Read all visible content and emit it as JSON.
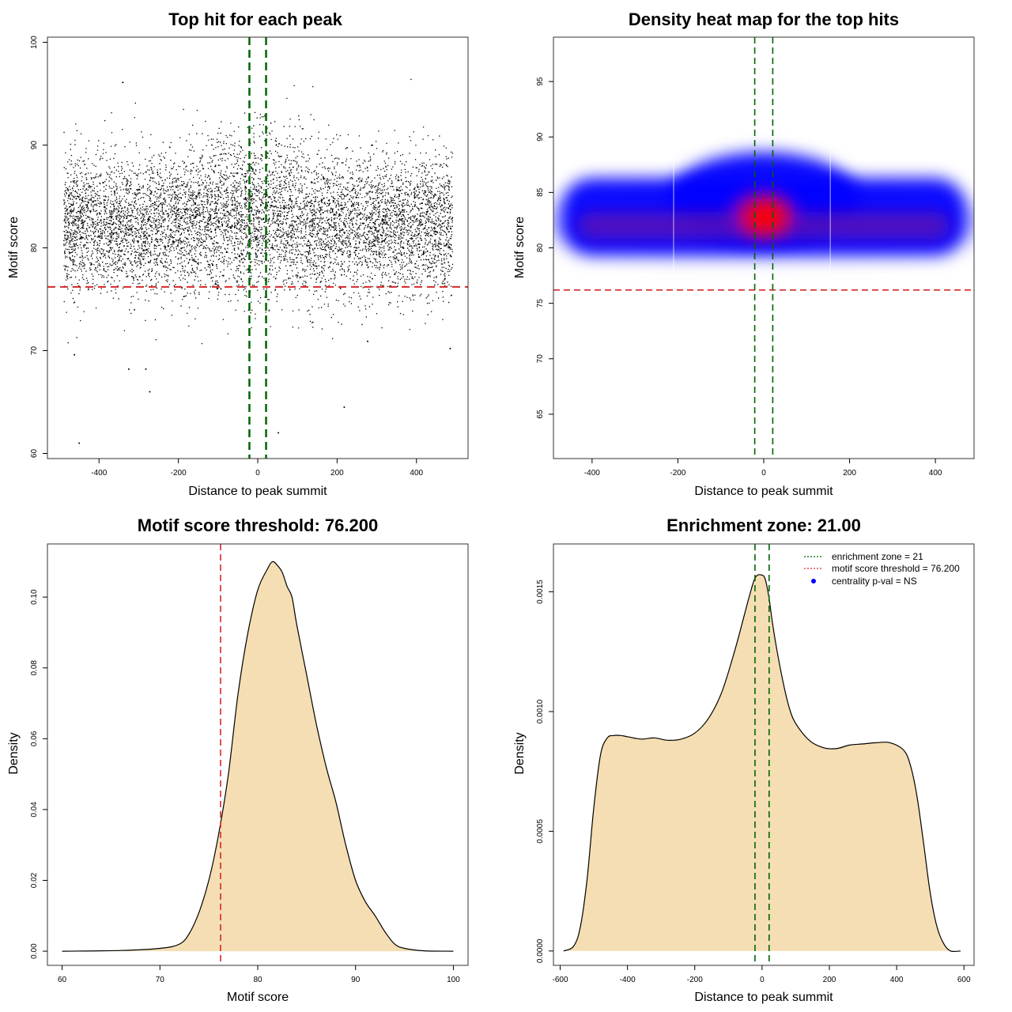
{
  "colors": {
    "threshold_line": "#d62728",
    "zone_line": "#006400",
    "density_fill": "#f5deb3",
    "heat_low": "#0000ff",
    "heat_high": "#ff0000",
    "points": "#000000",
    "legend_dot": "#0000ff"
  },
  "chart_data": [
    {
      "type": "scatter",
      "title": "Top hit for each peak",
      "xlabel": "Distance to peak summit",
      "ylabel": "Motif score",
      "xlim": [
        -530,
        530
      ],
      "ylim": [
        59.5,
        100.5
      ],
      "xticks": [
        -400,
        -200,
        0,
        200,
        400
      ],
      "yticks": [
        60,
        70,
        80,
        90,
        100
      ],
      "x_range_of_points": [
        -490,
        490
      ],
      "y_core_mean": 83,
      "n_points_approx": 20000,
      "threshold_hline": 76.2,
      "zone_vlines": [
        -21,
        21
      ],
      "outliers": [
        {
          "x": -450,
          "y": 61.0
        },
        {
          "x": -325,
          "y": 68.2
        },
        {
          "x": -282,
          "y": 68.2
        },
        {
          "x": -272,
          "y": 66.0
        },
        {
          "x": -462,
          "y": 69.6
        },
        {
          "x": 52,
          "y": 62.0
        },
        {
          "x": 218,
          "y": 64.5
        },
        {
          "x": 277,
          "y": 70.9
        },
        {
          "x": 485,
          "y": 70.2
        },
        {
          "x": -340,
          "y": 96.1
        }
      ]
    },
    {
      "type": "heatmap",
      "title": "Density heat map for the top hits",
      "xlabel": "Distance to peak summit",
      "ylabel": "Motif score",
      "xlim": [
        -490,
        490
      ],
      "ylim": [
        61,
        99
      ],
      "xticks": [
        -400,
        -200,
        0,
        200,
        400
      ],
      "yticks": [
        65,
        70,
        75,
        80,
        85,
        90,
        95
      ],
      "threshold_hline": 76.2,
      "zone_vlines": [
        -21,
        21
      ],
      "density_center": {
        "x": 0,
        "y": 83
      }
    },
    {
      "type": "area",
      "title": "Motif score threshold: 76.200",
      "xlabel": "Motif score",
      "ylabel": "Density",
      "xlim": [
        58.5,
        101.5
      ],
      "ylim": [
        -0.004,
        0.115
      ],
      "xticks": [
        60,
        70,
        80,
        90,
        100
      ],
      "yticks": [
        0.0,
        0.02,
        0.04,
        0.06,
        0.08,
        0.1
      ],
      "ytick_labels": [
        "0.00",
        "0.02",
        "0.04",
        "0.06",
        "0.08",
        "0.10"
      ],
      "threshold_vline": 76.2,
      "x": [
        60,
        66,
        70,
        72,
        73,
        74,
        75,
        76,
        77,
        78,
        79,
        80,
        81,
        81.5,
        82,
        82.5,
        83,
        83.5,
        84,
        85,
        86,
        87,
        88,
        89,
        90,
        91,
        92,
        93,
        94,
        95,
        97,
        100
      ],
      "y": [
        0.0,
        0.0002,
        0.0008,
        0.002,
        0.005,
        0.011,
        0.02,
        0.033,
        0.05,
        0.073,
        0.09,
        0.102,
        0.108,
        0.11,
        0.109,
        0.107,
        0.103,
        0.1,
        0.092,
        0.078,
        0.064,
        0.052,
        0.042,
        0.03,
        0.02,
        0.014,
        0.01,
        0.0055,
        0.002,
        0.0008,
        0.0001,
        0.0
      ]
    },
    {
      "type": "area",
      "title": "Enrichment zone: 21.00",
      "xlabel": "Distance to peak summit",
      "ylabel": "Density",
      "xlim": [
        -620,
        630
      ],
      "ylim": [
        -6e-05,
        0.0017
      ],
      "xticks": [
        -600,
        -400,
        -200,
        0,
        200,
        400,
        600
      ],
      "yticks": [
        0.0,
        0.0005,
        0.001,
        0.0015
      ],
      "ytick_labels": [
        "0.0000",
        "0.0005",
        "0.0010",
        "0.0015"
      ],
      "zone_vlines": [
        -21,
        21
      ],
      "x": [
        -590,
        -560,
        -540,
        -520,
        -500,
        -480,
        -460,
        -440,
        -420,
        -400,
        -360,
        -320,
        -280,
        -240,
        -200,
        -160,
        -120,
        -80,
        -40,
        -20,
        0,
        10,
        20,
        30,
        40,
        60,
        80,
        100,
        140,
        180,
        220,
        260,
        300,
        340,
        380,
        420,
        440,
        460,
        480,
        500,
        520,
        540,
        560,
        590
      ],
      "y": [
        0.0,
        2e-05,
        0.0001,
        0.0003,
        0.0006,
        0.00082,
        0.00089,
        0.0009,
        0.0009,
        0.000895,
        0.000885,
        0.00089,
        0.00088,
        0.000885,
        0.00091,
        0.00097,
        0.00108,
        0.00126,
        0.00147,
        0.00156,
        0.00157,
        0.00155,
        0.00148,
        0.00138,
        0.00129,
        0.00114,
        0.00102,
        0.00095,
        0.00088,
        0.00085,
        0.000845,
        0.00086,
        0.000865,
        0.00087,
        0.00087,
        0.00084,
        0.00078,
        0.00065,
        0.00045,
        0.00024,
        0.0001,
        3e-05,
        0.0,
        0.0
      ]
    }
  ],
  "legend": {
    "items": [
      {
        "label": "enrichment zone = 21",
        "kind": "dotted-line",
        "color": "#006400"
      },
      {
        "label": "motif score threshold = 76.200",
        "kind": "dotted-line",
        "color": "#d62728"
      },
      {
        "label": "centrality p-val = NS",
        "kind": "dot",
        "color": "#0000ff"
      }
    ]
  }
}
